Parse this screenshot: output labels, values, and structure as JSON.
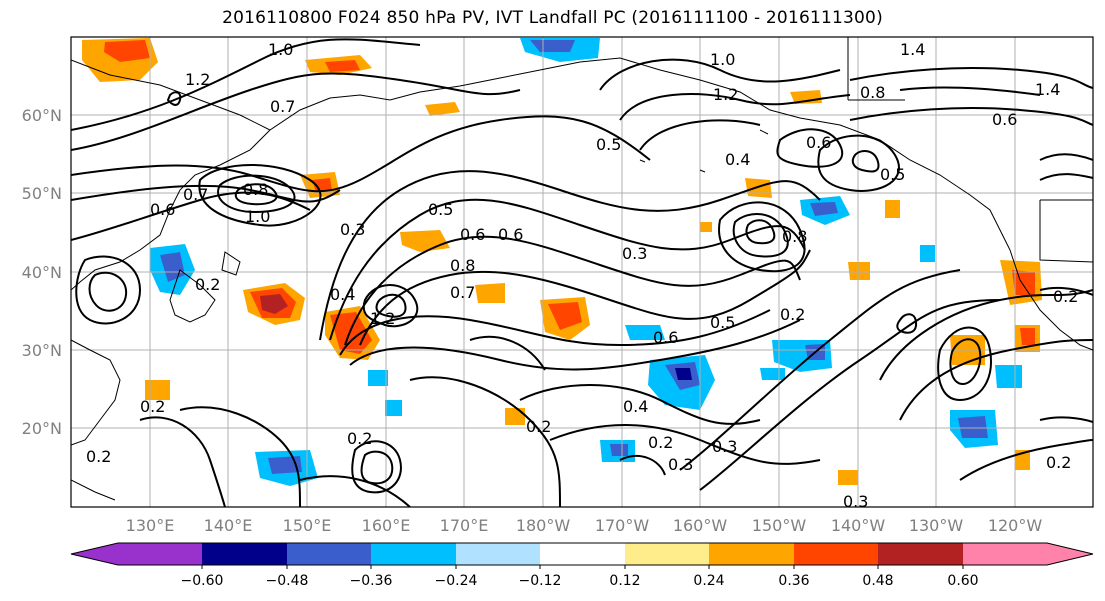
{
  "title": "2016110800 F024 850 hPa PV, IVT Landfall PC (2016111100 - 2016111300)",
  "latitudes": [
    "60°N",
    "50°N",
    "40°N",
    "30°N",
    "20°N"
  ],
  "longitudes": [
    "130°E",
    "140°E",
    "150°E",
    "160°E",
    "170°E",
    "180°W",
    "170°W",
    "160°W",
    "150°W",
    "140°W",
    "130°W",
    "120°W"
  ],
  "contour_labels": [
    "1.0",
    "1.2",
    "0.7",
    "1.0",
    "1.2",
    "1.4",
    "1.4",
    "0.8",
    "0.6",
    "0.5",
    "0.4",
    "0.6",
    "0.5",
    "0.6",
    "0.7",
    "0.8",
    "1.0",
    "0.6",
    "0.3",
    "0.5",
    "0.6",
    "0.8",
    "0.3",
    "0.8",
    "0.7",
    "1.2",
    "0.4",
    "0.6",
    "0.5",
    "0.2",
    "0.2",
    "0.2",
    "0.4",
    "0.2",
    "0.2",
    "0.3",
    "0.2",
    "0.3",
    "0.2",
    "0.3",
    "0.2",
    "0.2"
  ],
  "colorbar": {
    "ticks": [
      "−0.60",
      "−0.48",
      "−0.36",
      "−0.24",
      "−0.12",
      "0.12",
      "0.24",
      "0.36",
      "0.48",
      "0.60"
    ],
    "colors": [
      "#9932cc",
      "#00008b",
      "#3a5fcd",
      "#00bfff",
      "#b0e2ff",
      "#ffffff",
      "#ffec8b",
      "#ffa500",
      "#ff4500",
      "#b22222",
      "#ff82ab"
    ]
  }
}
